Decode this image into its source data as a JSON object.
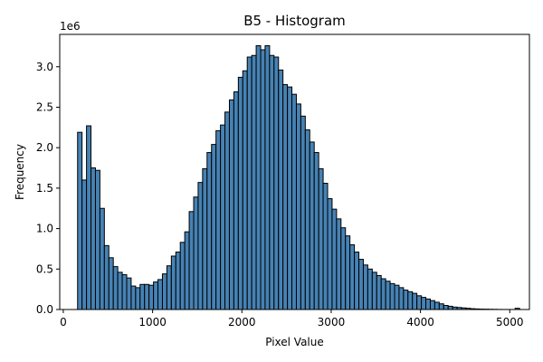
{
  "chart_data": {
    "type": "bar",
    "title": "B5 - Histogram",
    "xlabel": "Pixel Value",
    "ylabel": "Frequency",
    "y_offset_label": "1e6",
    "xlim": [
      -40,
      5220
    ],
    "ylim": [
      0,
      3.4
    ],
    "x_ticks": [
      0,
      1000,
      2000,
      3000,
      4000,
      5000
    ],
    "x_tick_labels": [
      "0",
      "1000",
      "2000",
      "3000",
      "4000",
      "5000"
    ],
    "y_ticks": [
      0.0,
      0.5,
      1.0,
      1.5,
      2.0,
      2.5,
      3.0
    ],
    "y_tick_labels": [
      "0.0",
      "0.5",
      "1.0",
      "1.5",
      "2.0",
      "2.5",
      "3.0"
    ],
    "bin_start": 160,
    "bin_width": 50,
    "grid": false,
    "values": [
      2.19,
      1.6,
      2.27,
      1.75,
      1.72,
      1.25,
      0.79,
      0.64,
      0.53,
      0.46,
      0.43,
      0.39,
      0.29,
      0.27,
      0.31,
      0.31,
      0.3,
      0.34,
      0.37,
      0.44,
      0.54,
      0.66,
      0.71,
      0.83,
      0.96,
      1.21,
      1.39,
      1.57,
      1.74,
      1.94,
      2.04,
      2.21,
      2.28,
      2.44,
      2.59,
      2.69,
      2.87,
      2.95,
      3.12,
      3.14,
      3.26,
      3.21,
      3.26,
      3.14,
      3.12,
      2.96,
      2.78,
      2.75,
      2.66,
      2.54,
      2.39,
      2.22,
      2.07,
      1.94,
      1.74,
      1.56,
      1.37,
      1.24,
      1.12,
      1.01,
      0.91,
      0.8,
      0.71,
      0.62,
      0.55,
      0.5,
      0.46,
      0.42,
      0.38,
      0.35,
      0.32,
      0.3,
      0.27,
      0.24,
      0.22,
      0.2,
      0.17,
      0.15,
      0.13,
      0.11,
      0.09,
      0.07,
      0.05,
      0.04,
      0.03,
      0.025,
      0.02,
      0.015,
      0.01,
      0.007,
      0.005,
      0.004,
      0.003,
      0.002,
      0.001,
      0.0005,
      0.0003,
      0.0002,
      0.015
    ],
    "colors": {
      "bar_fill": "#4682b4",
      "bar_edge": "#000000"
    }
  }
}
